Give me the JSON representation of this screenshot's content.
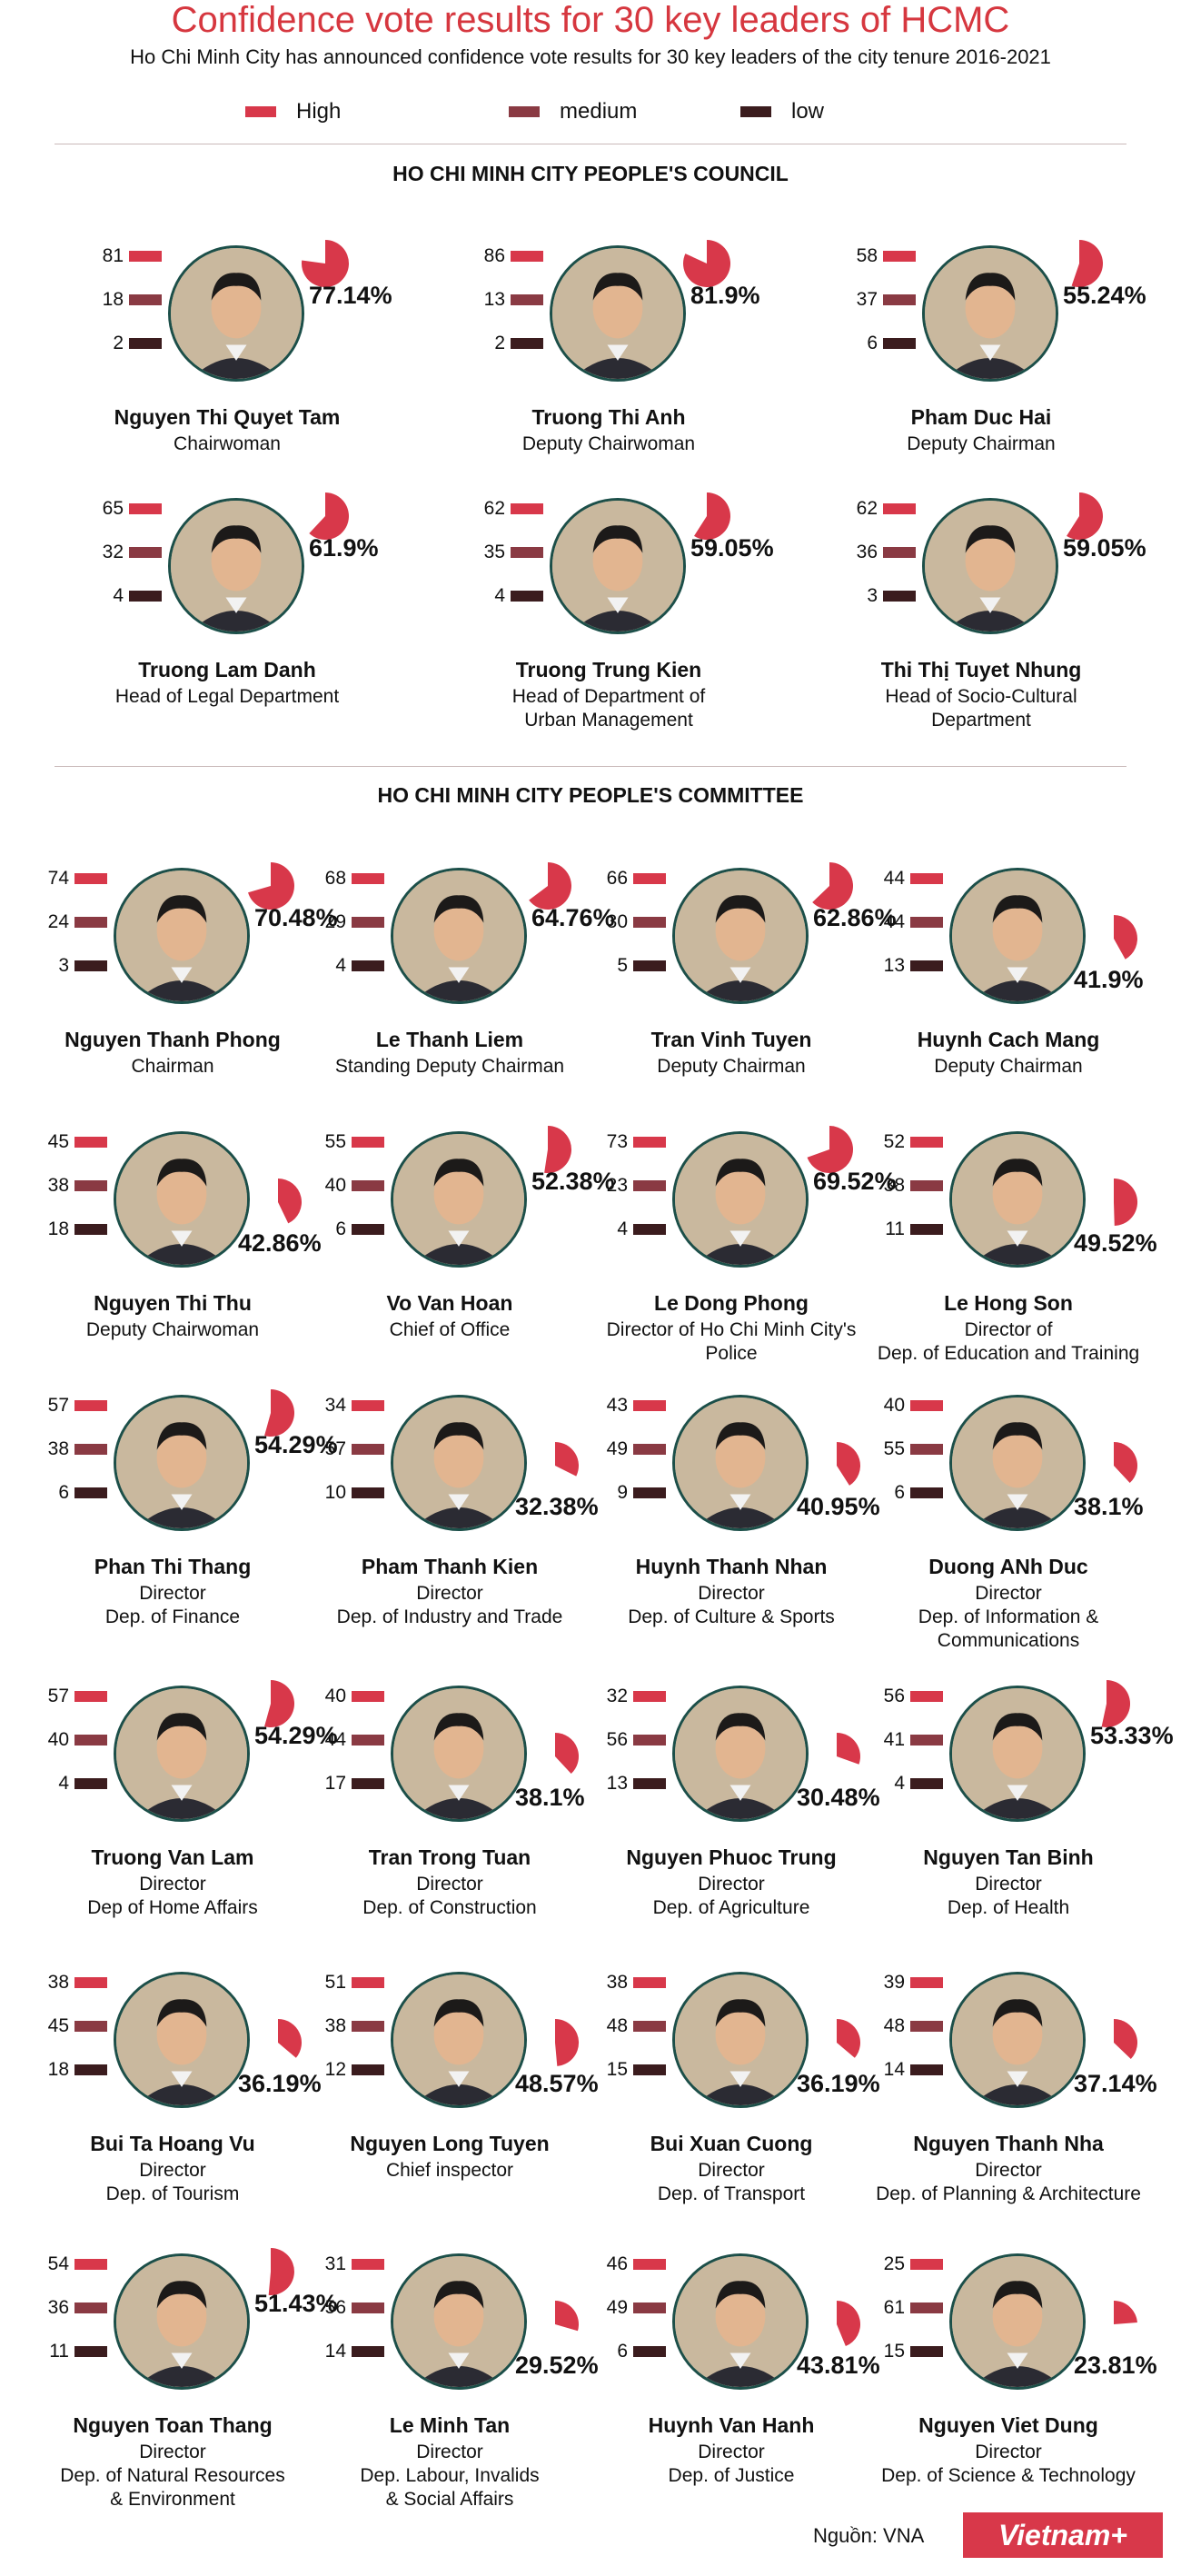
{
  "title": "Confidence vote results for 30 key leaders of HCMC",
  "subtitle": "Ho Chi Minh City has announced confidence vote results for 30 key leaders of the city tenure 2016-2021",
  "legend": {
    "high": "High",
    "medium": "medium",
    "low": "low"
  },
  "colors": {
    "title": "#d6373f",
    "high": "#d8384a",
    "medium": "#8a3a43",
    "low": "#3b1c1e",
    "photo_ring": "#1c4f49"
  },
  "council": {
    "heading": "HO CHI MINH CITY PEOPLE'S COUNCIL",
    "leaders": [
      {
        "name": "Nguyen Thi Quyet Tam",
        "role": [
          "Chairwoman"
        ],
        "high": "81",
        "medium": "18",
        "low": "2",
        "pct": "77.14%",
        "pct_value": 77.14
      },
      {
        "name": "Truong Thi Anh",
        "role": [
          "Deputy Chairwoman"
        ],
        "high": "86",
        "medium": "13",
        "low": "2",
        "pct": "81.9%",
        "pct_value": 81.9
      },
      {
        "name": "Pham Duc Hai",
        "role": [
          "Deputy Chairman"
        ],
        "high": "58",
        "medium": "37",
        "low": "6",
        "pct": "55.24%",
        "pct_value": 55.24
      },
      {
        "name": "Truong Lam Danh",
        "role": [
          "Head of Legal Department"
        ],
        "high": "65",
        "medium": "32",
        "low": "4",
        "pct": "61.9%",
        "pct_value": 61.9
      },
      {
        "name": "Truong Trung Kien",
        "role": [
          "Head of Department of",
          "Urban Management"
        ],
        "high": "62",
        "medium": "35",
        "low": "4",
        "pct": "59.05%",
        "pct_value": 59.05
      },
      {
        "name": "Thi Thị Tuyet Nhung",
        "role": [
          "Head of Socio-Cultural Department"
        ],
        "high": "62",
        "medium": "36",
        "low": "3",
        "pct": "59.05%",
        "pct_value": 59.05
      }
    ]
  },
  "committee": {
    "heading": "HO CHI MINH CITY PEOPLE'S COMMITTEE",
    "leaders": [
      {
        "name": "Nguyen Thanh Phong",
        "role": [
          "Chairman"
        ],
        "high": "74",
        "medium": "24",
        "low": "3",
        "pct": "70.48%",
        "pct_value": 70.48
      },
      {
        "name": "Le Thanh Liem",
        "role": [
          "Standing Deputy Chairman"
        ],
        "high": "68",
        "medium": "29",
        "low": "4",
        "pct": "64.76%",
        "pct_value": 64.76
      },
      {
        "name": "Tran Vinh Tuyen",
        "role": [
          "Deputy Chairman"
        ],
        "high": "66",
        "medium": "30",
        "low": "5",
        "pct": "62.86%",
        "pct_value": 62.86
      },
      {
        "name": "Huynh Cach Mang",
        "role": [
          "Deputy Chairman"
        ],
        "high": "44",
        "medium": "44",
        "low": "13",
        "pct": "41.9%",
        "pct_value": 41.9
      },
      {
        "name": "Nguyen Thi Thu",
        "role": [
          "Deputy Chairwoman"
        ],
        "high": "45",
        "medium": "38",
        "low": "18",
        "pct": "42.86%",
        "pct_value": 42.86
      },
      {
        "name": "Vo Van Hoan",
        "role": [
          "Chief of Office"
        ],
        "high": "55",
        "medium": "40",
        "low": "6",
        "pct": "52.38%",
        "pct_value": 52.38
      },
      {
        "name": "Le Dong Phong",
        "role": [
          "Director of Ho Chi Minh City's Police"
        ],
        "high": "73",
        "medium": "23",
        "low": "4",
        "pct": "69.52%",
        "pct_value": 69.52
      },
      {
        "name": "Le Hong Son",
        "role": [
          "Director of",
          "Dep. of Education and Training"
        ],
        "high": "52",
        "medium": "38",
        "low": "11",
        "pct": "49.52%",
        "pct_value": 49.52
      },
      {
        "name": "Phan Thi Thang",
        "role": [
          "Director",
          "Dep. of Finance"
        ],
        "high": "57",
        "medium": "38",
        "low": "6",
        "pct": "54.29%",
        "pct_value": 54.29
      },
      {
        "name": "Pham Thanh Kien",
        "role": [
          "Director",
          "Dep. of Industry and Trade"
        ],
        "high": "34",
        "medium": "57",
        "low": "10",
        "pct": "32.38%",
        "pct_value": 32.38
      },
      {
        "name": "Huynh Thanh Nhan",
        "role": [
          "Director",
          "Dep. of Culture & Sports"
        ],
        "high": "43",
        "medium": "49",
        "low": "9",
        "pct": "40.95%",
        "pct_value": 40.95
      },
      {
        "name": "Duong ANh Duc",
        "role": [
          "Director",
          "Dep. of Information &",
          "Communications"
        ],
        "high": "40",
        "medium": "55",
        "low": "6",
        "pct": "38.1%",
        "pct_value": 38.1
      },
      {
        "name": "Truong Van Lam",
        "role": [
          "Director",
          "Dep of Home Affairs"
        ],
        "high": "57",
        "medium": "40",
        "low": "4",
        "pct": "54.29%",
        "pct_value": 54.29
      },
      {
        "name": "Tran Trong Tuan",
        "role": [
          "Director",
          "Dep. of Construction"
        ],
        "high": "40",
        "medium": "44",
        "low": "17",
        "pct": "38.1%",
        "pct_value": 38.1
      },
      {
        "name": "Nguyen Phuoc Trung",
        "role": [
          "Director",
          "Dep. of Agriculture"
        ],
        "high": "32",
        "medium": "56",
        "low": "13",
        "pct": "30.48%",
        "pct_value": 30.48
      },
      {
        "name": "Nguyen Tan Binh",
        "role": [
          "Director",
          "Dep. of Health"
        ],
        "high": "56",
        "medium": "41",
        "low": "4",
        "pct": "53.33%",
        "pct_value": 53.33
      },
      {
        "name": "Bui Ta Hoang Vu",
        "role": [
          "Director",
          "Dep. of Tourism"
        ],
        "high": "38",
        "medium": "45",
        "low": "18",
        "pct": "36.19%",
        "pct_value": 36.19
      },
      {
        "name": "Nguyen Long Tuyen",
        "role": [
          "Chief inspector"
        ],
        "high": "51",
        "medium": "38",
        "low": "12",
        "pct": "48.57%",
        "pct_value": 48.57
      },
      {
        "name": "Bui Xuan Cuong",
        "role": [
          "Director",
          "Dep. of Transport"
        ],
        "high": "38",
        "medium": "48",
        "low": "15",
        "pct": "36.19%",
        "pct_value": 36.19
      },
      {
        "name": "Nguyen Thanh Nha",
        "role": [
          "Director",
          "Dep. of Planning & Architecture"
        ],
        "high": "39",
        "medium": "48",
        "low": "14",
        "pct": "37.14%",
        "pct_value": 37.14
      },
      {
        "name": "Nguyen Toan Thang",
        "role": [
          "Director",
          "Dep. of Natural Resources",
          "& Environment"
        ],
        "high": "54",
        "medium": "36",
        "low": "11",
        "pct": "51.43%",
        "pct_value": 51.43
      },
      {
        "name": "Le Minh Tan",
        "role": [
          "Director",
          "Dep. Labour, Invalids",
          "& Social Affairs"
        ],
        "high": "31",
        "medium": "56",
        "low": "14",
        "pct": "29.52%",
        "pct_value": 29.52
      },
      {
        "name": "Huynh Van Hanh",
        "role": [
          "Director",
          "Dep. of Justice"
        ],
        "high": "46",
        "medium": "49",
        "low": "6",
        "pct": "43.81%",
        "pct_value": 43.81
      },
      {
        "name": "Nguyen Viet Dung",
        "role": [
          "Director",
          "Dep. of Science & Technology"
        ],
        "high": "25",
        "medium": "61",
        "low": "15",
        "pct": "23.81%",
        "pct_value": 23.81
      }
    ]
  },
  "footer": {
    "source": "Nguồn: VNA",
    "logo": "Vietnam+"
  }
}
